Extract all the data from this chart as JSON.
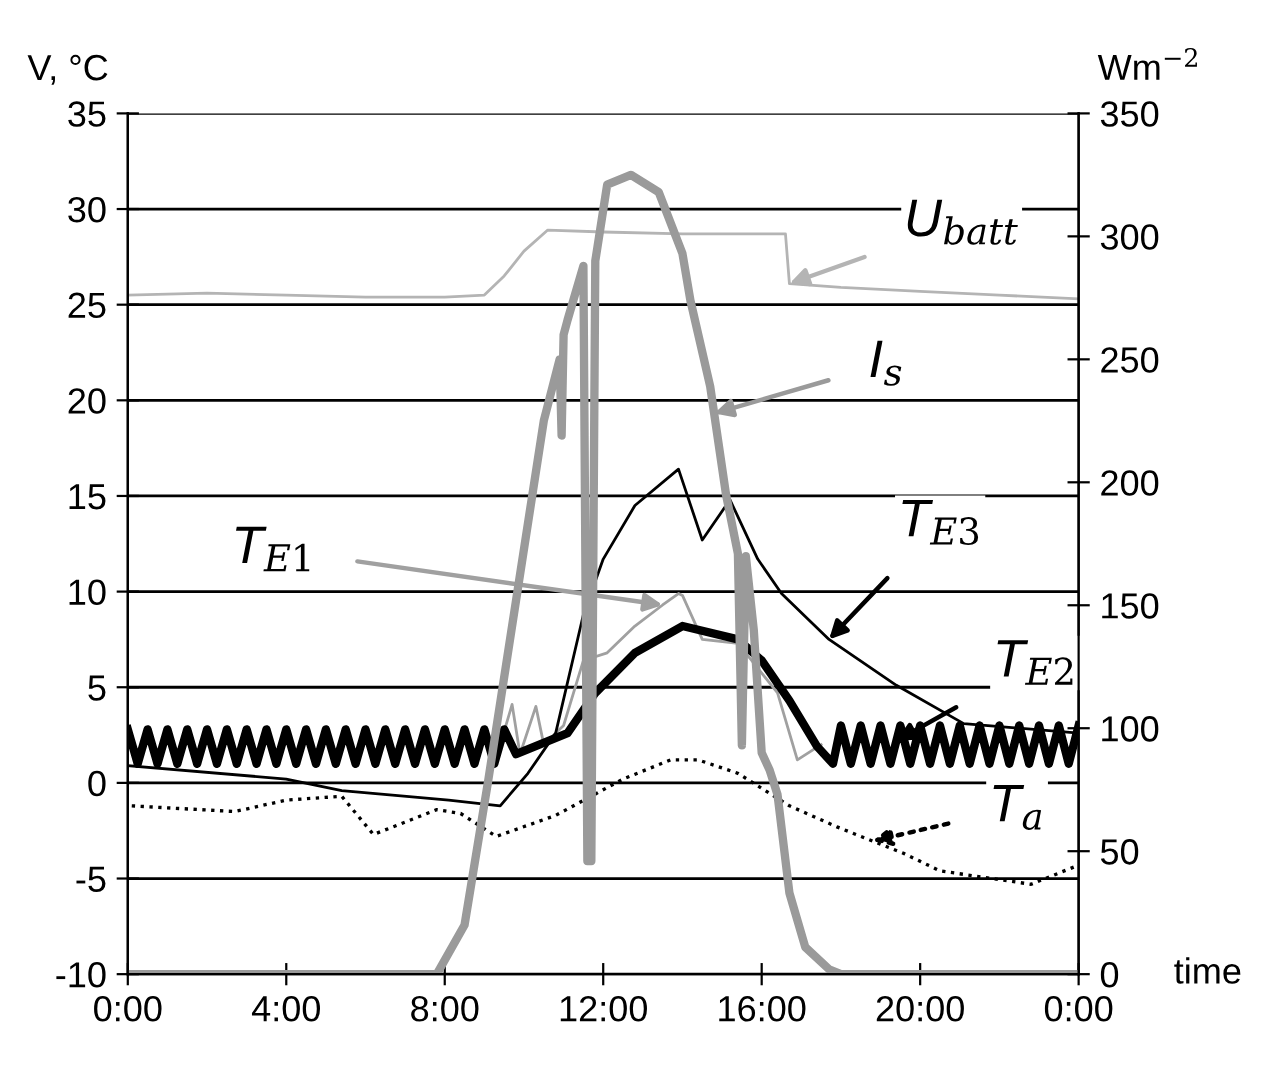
{
  "chart_data": {
    "type": "line",
    "xlabel": "time",
    "ylabel": "V, °C",
    "y2label": "Wm$^{−2}$",
    "xlim": [
      0,
      24
    ],
    "xticks": [
      {
        "value": 0,
        "label": "0:00"
      },
      {
        "value": 4,
        "label": "4:00"
      },
      {
        "value": 8,
        "label": "8:00"
      },
      {
        "value": 12,
        "label": "12:00"
      },
      {
        "value": 16,
        "label": "16:00"
      },
      {
        "value": 20,
        "label": "20:00"
      },
      {
        "value": 24,
        "label": "0:00"
      }
    ],
    "ylim": [
      -10,
      35
    ],
    "yticks": [
      -10,
      -5,
      0,
      5,
      10,
      15,
      20,
      25,
      30,
      35
    ],
    "y2lim": [
      0,
      350
    ],
    "y2ticks": [
      0,
      50,
      100,
      150,
      200,
      250,
      300,
      350
    ],
    "grid": "y",
    "legend": "right",
    "series": [
      {
        "name": "U$_{batt}$",
        "color": "#b4b4b4",
        "x": [
          0,
          2,
          4,
          6,
          8,
          9.0,
          9.5,
          10.0,
          10.6,
          12,
          14,
          16.6,
          16.7,
          18,
          20,
          22,
          24
        ],
        "values": [
          25.5,
          25.6,
          25.5,
          25.4,
          25.4,
          25.5,
          26.5,
          27.8,
          28.9,
          28.8,
          28.7,
          28.7,
          26.1,
          25.9,
          25.7,
          25.5,
          25.3
        ]
      },
      {
        "name": "I$_{s}$",
        "color": "#9a9a9a",
        "axis": "y2",
        "x": [
          0,
          7.8,
          8.5,
          9.1,
          9.8,
          10.5,
          10.9,
          10.95,
          11.0,
          11.1,
          11.5,
          11.6,
          11.7,
          11.8,
          12.1,
          12.7,
          13.4,
          14.0,
          14.2,
          14.7,
          15.1,
          15.4,
          15.5,
          15.6,
          15.8,
          16.0,
          16.2,
          16.4,
          16.7,
          17.1,
          17.7,
          18.0,
          24
        ],
        "values": [
          0,
          0,
          20,
          79,
          152,
          225,
          250,
          219,
          260,
          266,
          288,
          46,
          46,
          290,
          321,
          325,
          318,
          293,
          274,
          239,
          195,
          171,
          93,
          170,
          140,
          90,
          83,
          73,
          33,
          11,
          2,
          0,
          0
        ]
      },
      {
        "name": "T$_{E1}$",
        "color": "#a0a0a0",
        "x": [
          9.4,
          9.7,
          9.9,
          10.3,
          10.5,
          11.0,
          11.5,
          12.1,
          12.8,
          13.5,
          13.9,
          14.0,
          14.5,
          15.4,
          16.4,
          16.9,
          17.5
        ],
        "values": [
          2.0,
          4.1,
          1.5,
          4.0,
          2.0,
          3.0,
          6.4,
          6.8,
          8.2,
          9.3,
          9.9,
          9.8,
          7.5,
          7.3,
          4.7,
          1.2,
          2.0
        ]
      },
      {
        "name": "T$_{E3}$",
        "color": "#000000",
        "x": [
          0,
          4,
          5.4,
          8.1,
          9.4,
          10.1,
          10.8,
          11.5,
          12.0,
          12.8,
          13.9,
          14.5,
          15.2,
          15.9,
          16.5,
          17.7,
          19.4,
          21.1,
          24
        ],
        "values": [
          0.9,
          0.2,
          -0.4,
          -0.9,
          -1.2,
          0.5,
          2.6,
          8.8,
          11.7,
          14.5,
          16.4,
          12.7,
          14.8,
          11.7,
          9.9,
          7.5,
          5.1,
          3.1,
          2.6
        ]
      },
      {
        "name": "T$_{E2}$",
        "color": "#000000",
        "x": [
          0,
          0.25,
          0.5,
          0.75,
          1.0,
          1.25,
          1.5,
          1.75,
          2.0,
          2.25,
          2.5,
          2.75,
          3.0,
          3.25,
          3.5,
          3.75,
          4.0,
          4.25,
          4.5,
          4.75,
          5.0,
          5.25,
          5.5,
          5.75,
          6.0,
          6.25,
          6.5,
          6.75,
          7.0,
          7.25,
          7.5,
          7.75,
          8.0,
          8.25,
          8.5,
          8.75,
          9.0,
          9.25,
          9.5,
          9.8,
          11.1,
          11.8,
          12.8,
          14.0,
          15.4,
          16.0,
          16.7,
          17.4,
          17.8,
          18.0,
          18.25,
          18.5,
          18.75,
          19.0,
          19.25,
          19.5,
          19.75,
          20.0,
          20.25,
          20.5,
          20.75,
          21.0,
          21.25,
          21.5,
          21.75,
          22.0,
          22.25,
          22.5,
          22.75,
          23.0,
          23.25,
          23.5,
          23.75,
          24
        ],
        "values": [
          2.8,
          1.0,
          2.8,
          1.0,
          2.8,
          1.0,
          2.8,
          1.0,
          2.8,
          1.0,
          2.8,
          1.0,
          2.8,
          1.0,
          2.8,
          1.0,
          2.8,
          1.0,
          2.8,
          1.0,
          2.8,
          1.0,
          2.8,
          1.0,
          2.8,
          1.0,
          2.8,
          1.0,
          2.8,
          1.0,
          2.8,
          1.0,
          2.8,
          1.0,
          2.8,
          1.0,
          2.8,
          1.0,
          2.8,
          1.5,
          2.6,
          4.7,
          6.8,
          8.2,
          7.5,
          6.4,
          4.3,
          1.9,
          1.0,
          3.0,
          1.0,
          3.0,
          1.0,
          3.0,
          1.0,
          3.0,
          1.0,
          3.0,
          1.0,
          3.0,
          1.0,
          3.0,
          1.0,
          3.0,
          1.0,
          3.0,
          1.0,
          3.0,
          1.0,
          3.0,
          1.0,
          3.0,
          1.0,
          3.0
        ]
      },
      {
        "name": "T$_{a}$",
        "color": "#000000",
        "line_style": "dotted",
        "x": [
          0.1,
          2.7,
          4.0,
          5.4,
          6.2,
          7.8,
          8.4,
          9.3,
          10.8,
          12.5,
          13.7,
          14.4,
          15.4,
          16.7,
          17.9,
          19.6,
          20.5,
          22.8,
          24
        ],
        "values": [
          -1.2,
          -1.5,
          -0.9,
          -0.7,
          -2.7,
          -1.4,
          -1.6,
          -2.8,
          -1.7,
          0.2,
          1.2,
          1.2,
          0.5,
          -1.2,
          -2.3,
          -3.7,
          -4.6,
          -5.3,
          -4.3
        ]
      }
    ]
  }
}
